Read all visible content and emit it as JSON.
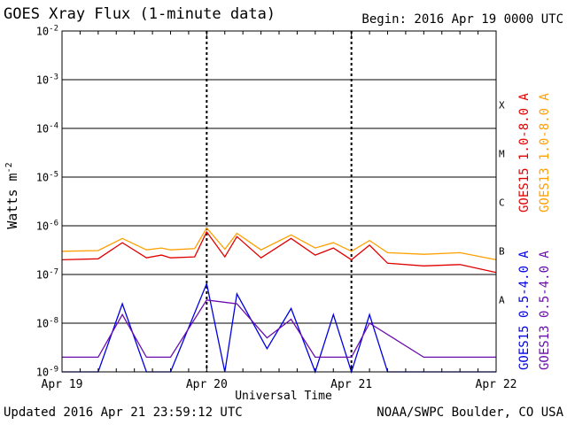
{
  "title": "GOES Xray Flux (1-minute data)",
  "begin": "Begin:  2016 Apr 19 0000 UTC",
  "updated": "Updated 2016 Apr 21 23:59:12 UTC",
  "credit": "NOAA/SWPC Boulder, CO USA",
  "chart_data": {
    "type": "line",
    "title": "GOES Xray Flux (1-minute data)",
    "xlabel": "Universal Time",
    "ylabel": "Watts m",
    "ylabel_sup": "-2",
    "y_scale": "log",
    "ylim": [
      1e-09,
      0.01
    ],
    "xlim": [
      "2016-04-19 00:00",
      "2016-04-22 00:00"
    ],
    "x_ticks": [
      "Apr 19",
      "Apr 20",
      "Apr 21",
      "Apr 22"
    ],
    "y_ticks": [
      {
        "base": "10",
        "exp": "-2",
        "value": 0.01
      },
      {
        "base": "10",
        "exp": "-3",
        "value": 0.001
      },
      {
        "base": "10",
        "exp": "-4",
        "value": 0.0001
      },
      {
        "base": "10",
        "exp": "-5",
        "value": 1e-05
      },
      {
        "base": "10",
        "exp": "-6",
        "value": 1e-06
      },
      {
        "base": "10",
        "exp": "-7",
        "value": 1e-07
      },
      {
        "base": "10",
        "exp": "-8",
        "value": 1e-08
      },
      {
        "base": "10",
        "exp": "-9",
        "value": 1e-09
      }
    ],
    "flare_classes": [
      {
        "label": "X",
        "value": 0.0003
      },
      {
        "label": "M",
        "value": 3e-05
      },
      {
        "label": "C",
        "value": 3e-06
      },
      {
        "label": "B",
        "value": 3e-07
      },
      {
        "label": "A",
        "value": 3e-08
      }
    ],
    "grid": true,
    "legend_position": "right",
    "series": [
      {
        "name": "GOES15 1.0-8.0 A",
        "color": "#e00000",
        "x": [
          "Apr 19 00:00",
          "Apr 19 06:00",
          "Apr 19 10:00",
          "Apr 19 14:00",
          "Apr 19 16:30",
          "Apr 19 18:00",
          "Apr 19 22:00",
          "Apr 20 00:00",
          "Apr 20 03:00",
          "Apr 20 05:00",
          "Apr 20 09:00",
          "Apr 20 14:00",
          "Apr 20 18:00",
          "Apr 20 21:00",
          "Apr 21 00:00",
          "Apr 21 03:00",
          "Apr 21 06:00",
          "Apr 21 12:00",
          "Apr 21 18:00",
          "Apr 22 00:00"
        ],
        "y": [
          2e-07,
          2.1e-07,
          4.5e-07,
          2.2e-07,
          2.5e-07,
          2.2e-07,
          2.3e-07,
          7.5e-07,
          2.3e-07,
          6e-07,
          2.2e-07,
          5.5e-07,
          2.5e-07,
          3.5e-07,
          2e-07,
          4e-07,
          1.7e-07,
          1.5e-07,
          1.6e-07,
          1.1e-07
        ]
      },
      {
        "name": "GOES13 1.0-8.0 A",
        "color": "#ff9f00",
        "x": [
          "Apr 19 00:00",
          "Apr 19 06:00",
          "Apr 19 10:00",
          "Apr 19 14:00",
          "Apr 19 16:30",
          "Apr 19 18:00",
          "Apr 19 22:00",
          "Apr 20 00:00",
          "Apr 20 03:00",
          "Apr 20 05:00",
          "Apr 20 09:00",
          "Apr 20 14:00",
          "Apr 20 18:00",
          "Apr 20 21:00",
          "Apr 21 00:00",
          "Apr 21 03:00",
          "Apr 21 06:00",
          "Apr 21 12:00",
          "Apr 21 18:00",
          "Apr 22 00:00"
        ],
        "y": [
          3e-07,
          3.1e-07,
          5.5e-07,
          3.2e-07,
          3.5e-07,
          3.2e-07,
          3.4e-07,
          9e-07,
          3.3e-07,
          7e-07,
          3.2e-07,
          6.5e-07,
          3.5e-07,
          4.5e-07,
          3e-07,
          5e-07,
          2.8e-07,
          2.6e-07,
          2.8e-07,
          2e-07
        ]
      },
      {
        "name": "GOES15 0.5-4.0 A",
        "color": "#0000e0",
        "x": [
          "Apr 19 00:00",
          "Apr 19 06:00",
          "Apr 19 10:00",
          "Apr 19 14:00",
          "Apr 19 18:00",
          "Apr 20 00:00",
          "Apr 20 03:00",
          "Apr 20 05:00",
          "Apr 20 10:00",
          "Apr 20 14:00",
          "Apr 20 18:00",
          "Apr 20 21:00",
          "Apr 21 00:00",
          "Apr 21 03:00",
          "Apr 21 06:00",
          "Apr 21 12:00",
          "Apr 22 00:00"
        ],
        "y": [
          1e-09,
          1e-09,
          2.5e-08,
          1e-09,
          1e-09,
          6.5e-08,
          1e-09,
          4e-08,
          3e-09,
          2e-08,
          1e-09,
          1.5e-08,
          1e-09,
          1.5e-08,
          1e-09,
          1e-09,
          1e-09
        ]
      },
      {
        "name": "GOES13 0.5-4.0 A",
        "color": "#6a0dad",
        "x": [
          "Apr 19 00:00",
          "Apr 19 06:00",
          "Apr 19 10:00",
          "Apr 19 14:00",
          "Apr 19 18:00",
          "Apr 20 00:00",
          "Apr 20 05:00",
          "Apr 20 10:00",
          "Apr 20 14:00",
          "Apr 20 18:00",
          "Apr 21 00:00",
          "Apr 21 03:00",
          "Apr 21 12:00",
          "Apr 22 00:00"
        ],
        "y": [
          2e-09,
          2e-09,
          1.5e-08,
          2e-09,
          2e-09,
          3e-08,
          2.5e-08,
          5e-09,
          1.2e-08,
          2e-09,
          2e-09,
          1e-08,
          2e-09,
          2e-09
        ]
      }
    ]
  }
}
